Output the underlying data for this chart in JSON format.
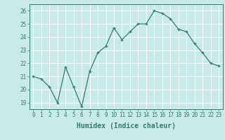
{
  "x": [
    0,
    1,
    2,
    3,
    4,
    5,
    6,
    7,
    8,
    9,
    10,
    11,
    12,
    13,
    14,
    15,
    16,
    17,
    18,
    19,
    20,
    21,
    22,
    23
  ],
  "y": [
    21.0,
    20.8,
    20.2,
    19.0,
    21.7,
    20.2,
    18.7,
    21.4,
    22.8,
    23.3,
    24.7,
    23.8,
    24.4,
    25.0,
    25.0,
    26.0,
    25.8,
    25.4,
    24.6,
    24.4,
    23.5,
    22.8,
    22.0,
    21.8
  ],
  "xlim": [
    -0.5,
    23.5
  ],
  "ylim": [
    18.5,
    26.5
  ],
  "yticks": [
    19,
    20,
    21,
    22,
    23,
    24,
    25,
    26
  ],
  "xticks": [
    0,
    1,
    2,
    3,
    4,
    5,
    6,
    7,
    8,
    9,
    10,
    11,
    12,
    13,
    14,
    15,
    16,
    17,
    18,
    19,
    20,
    21,
    22,
    23
  ],
  "xlabel": "Humidex (Indice chaleur)",
  "line_color": "#2e7d6e",
  "marker": "+",
  "bg_color": "#c8eaea",
  "grid_color": "#ffffff",
  "text_color": "#2e7d6e",
  "tick_label_size": 5.5,
  "xlabel_size": 7.0
}
